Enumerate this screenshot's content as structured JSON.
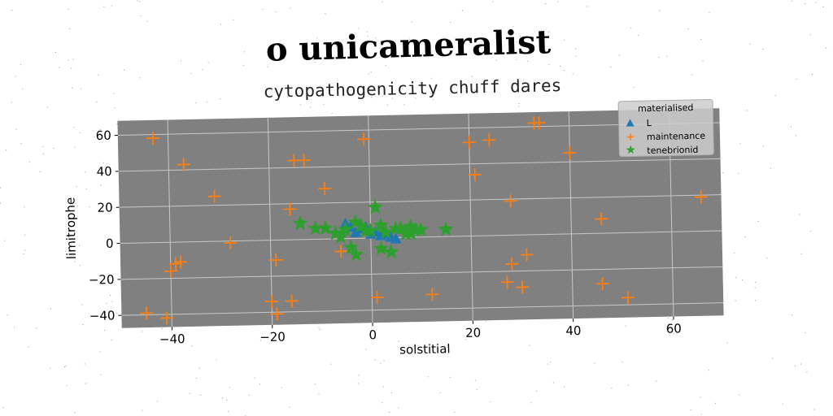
{
  "chart_data": {
    "type": "scatter",
    "title": "o unicameralist",
    "subtitle": "cytopathogenicity chuff dares",
    "xlabel": "solstitial",
    "ylabel": "limitrophe",
    "xlim": [
      -50,
      70
    ],
    "ylim": [
      -47,
      68
    ],
    "grid": true,
    "xticks": [
      -40,
      -20,
      0,
      20,
      40,
      60
    ],
    "yticks": [
      -40,
      -20,
      0,
      20,
      40,
      60
    ],
    "xtick_labels": [
      "−40",
      "−20",
      "0",
      "20",
      "40",
      "60"
    ],
    "ytick_labels": [
      "−40",
      "−20",
      "0",
      "20",
      "40",
      "60"
    ],
    "legend": {
      "title": "materialised",
      "position": "top-right"
    },
    "series": [
      {
        "name": "L",
        "marker": "triangle",
        "color": "#1f77b4",
        "points": [
          [
            -5,
            8
          ],
          [
            -4,
            6
          ],
          [
            -2,
            5
          ],
          [
            -1,
            6
          ],
          [
            0,
            4
          ],
          [
            1,
            3
          ],
          [
            2,
            1
          ],
          [
            3,
            2
          ],
          [
            4,
            0
          ],
          [
            5,
            -1
          ],
          [
            -3,
            3
          ],
          [
            0,
            2
          ]
        ]
      },
      {
        "name": "maintenance",
        "marker": "plus",
        "color": "#ff7f0e",
        "points": [
          [
            -43,
            58
          ],
          [
            -37,
            43
          ],
          [
            -15,
            44
          ],
          [
            -13,
            44
          ],
          [
            -1,
            55
          ],
          [
            -31,
            25
          ],
          [
            -9,
            28
          ],
          [
            -16,
            17
          ],
          [
            -28,
            -1
          ],
          [
            -40,
            -16
          ],
          [
            -39,
            -12
          ],
          [
            -38,
            -11
          ],
          [
            -19,
            -11
          ],
          [
            -6,
            -7
          ],
          [
            -20,
            -34
          ],
          [
            -16,
            -34
          ],
          [
            -19,
            -41
          ],
          [
            -45,
            -39
          ],
          [
            -41,
            -42
          ],
          [
            1,
            -33
          ],
          [
            12,
            -32
          ],
          [
            20,
            52
          ],
          [
            24,
            53
          ],
          [
            33,
            62
          ],
          [
            34,
            62
          ],
          [
            40,
            45
          ],
          [
            21,
            34
          ],
          [
            28,
            19
          ],
          [
            66,
            19
          ],
          [
            46,
            8
          ],
          [
            28,
            -16
          ],
          [
            31,
            -11
          ],
          [
            27,
            -26
          ],
          [
            30,
            -29
          ],
          [
            46,
            -28
          ],
          [
            51,
            -36
          ]
        ]
      },
      {
        "name": "tenebrionid",
        "marker": "star",
        "color": "#2ca02c",
        "points": [
          [
            -14,
            9
          ],
          [
            -11,
            6
          ],
          [
            -9,
            6
          ],
          [
            -7,
            3
          ],
          [
            -6,
            1
          ],
          [
            -5,
            5
          ],
          [
            -3,
            9
          ],
          [
            -2,
            7
          ],
          [
            -4,
            -5
          ],
          [
            -3,
            -9
          ],
          [
            -1,
            4
          ],
          [
            0,
            4
          ],
          [
            1,
            17
          ],
          [
            2,
            7
          ],
          [
            3,
            3
          ],
          [
            2,
            -6
          ],
          [
            4,
            -8
          ],
          [
            5,
            5
          ],
          [
            6,
            5
          ],
          [
            7,
            2
          ],
          [
            8,
            6
          ],
          [
            9,
            4
          ],
          [
            10,
            4
          ],
          [
            8,
            2
          ],
          [
            15,
            4
          ]
        ]
      }
    ]
  }
}
